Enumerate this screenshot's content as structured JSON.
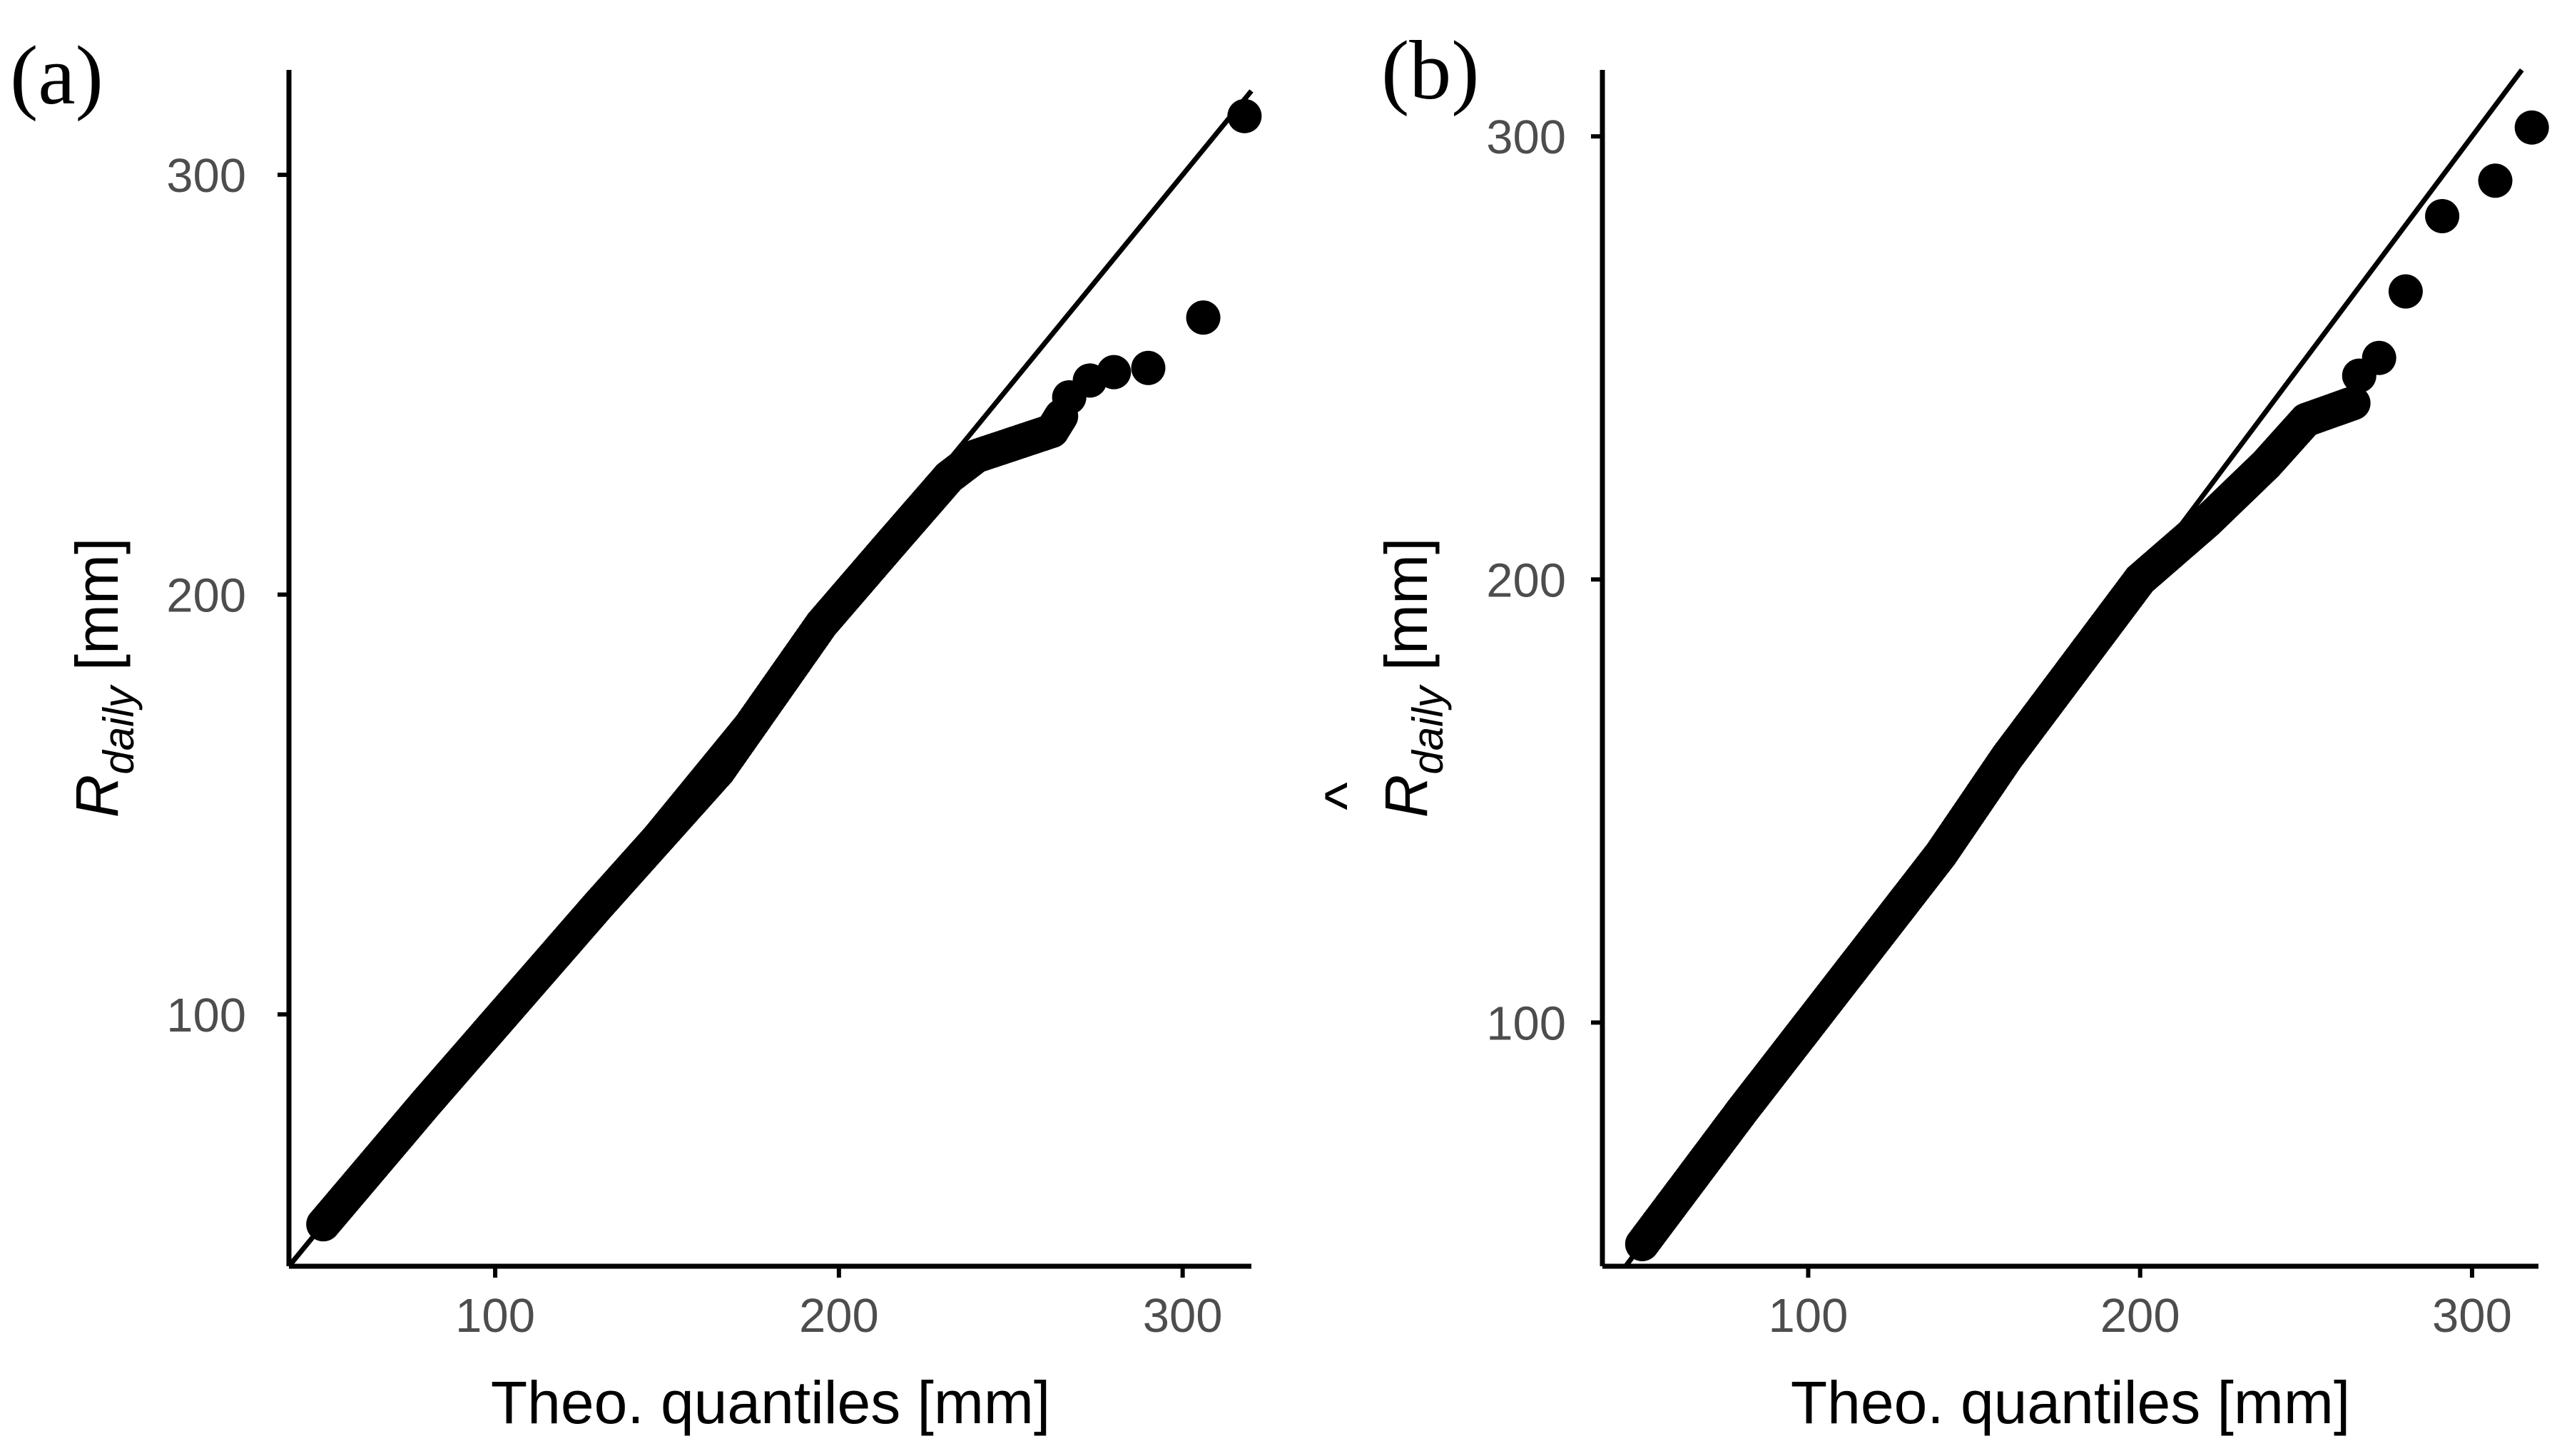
{
  "figure": {
    "panels": [
      "(a)",
      "(b)"
    ]
  },
  "colors": {
    "points": "#000000",
    "axis": "#000000",
    "tick_text": "#4d4d4d",
    "background": "#ffffff"
  },
  "chart_data": [
    {
      "panel_label": "(a)",
      "type": "scatter",
      "title": "",
      "xlabel": "Theo. quantiles [mm]",
      "ylabel_main": "R",
      "ylabel_sub": "daily",
      "ylabel_unit": "[mm]",
      "ylabel_hat": false,
      "xlim": [
        40,
        320
      ],
      "ylim": [
        40,
        325
      ],
      "xticks": [
        100,
        200,
        300
      ],
      "yticks": [
        100,
        200,
        300
      ],
      "grid": false,
      "reference_line": "y = x",
      "dense_ranges": [
        {
          "x": [
            50,
            80
          ],
          "y": [
            50,
            79
          ]
        },
        {
          "x": [
            80,
            130
          ],
          "y": [
            79,
            126
          ]
        },
        {
          "x": [
            130,
            165
          ],
          "y": [
            126,
            158
          ]
        },
        {
          "x": [
            165,
            195
          ],
          "y": [
            158,
            193
          ]
        },
        {
          "x": [
            195,
            215
          ],
          "y": [
            193,
            212
          ]
        },
        {
          "x": [
            215,
            232
          ],
          "y": [
            212,
            228
          ]
        },
        {
          "x": [
            232,
            240
          ],
          "y": [
            228,
            233
          ]
        },
        {
          "x": [
            240,
            262
          ],
          "y": [
            233,
            239
          ]
        },
        {
          "x": [
            262,
            265
          ],
          "y": [
            239,
            243
          ]
        }
      ],
      "points": [
        {
          "x": 267,
          "y": 247
        },
        {
          "x": 273,
          "y": 251
        },
        {
          "x": 280,
          "y": 253
        },
        {
          "x": 290,
          "y": 254
        },
        {
          "x": 306,
          "y": 266
        },
        {
          "x": 318,
          "y": 314
        }
      ]
    },
    {
      "panel_label": "(b)",
      "type": "scatter",
      "title": "",
      "xlabel": "Theo. quantiles [mm]",
      "ylabel_main": "R",
      "ylabel_sub": "daily",
      "ylabel_unit": "[mm]",
      "ylabel_hat": true,
      "hat_symbol": "^",
      "xlim": [
        38,
        320
      ],
      "ylim": [
        45,
        315
      ],
      "xticks": [
        100,
        200,
        300
      ],
      "yticks": [
        100,
        200,
        300
      ],
      "grid": false,
      "reference_line": "y = x",
      "dense_ranges": [
        {
          "x": [
            50,
            80
          ],
          "y": [
            50,
            80
          ]
        },
        {
          "x": [
            80,
            140
          ],
          "y": [
            80,
            138
          ]
        },
        {
          "x": [
            140,
            160
          ],
          "y": [
            138,
            160
          ]
        },
        {
          "x": [
            160,
            185
          ],
          "y": [
            160,
            185
          ]
        },
        {
          "x": [
            185,
            200
          ],
          "y": [
            185,
            200
          ]
        },
        {
          "x": [
            200,
            220
          ],
          "y": [
            200,
            213
          ]
        },
        {
          "x": [
            220,
            238
          ],
          "y": [
            213,
            226
          ]
        },
        {
          "x": [
            238,
            250
          ],
          "y": [
            226,
            236
          ]
        },
        {
          "x": [
            250,
            265
          ],
          "y": [
            236,
            240
          ]
        }
      ],
      "points": [
        {
          "x": 266,
          "y": 246
        },
        {
          "x": 272,
          "y": 250
        },
        {
          "x": 280,
          "y": 265
        },
        {
          "x": 291,
          "y": 282
        },
        {
          "x": 307,
          "y": 290
        },
        {
          "x": 318,
          "y": 302
        }
      ]
    }
  ]
}
